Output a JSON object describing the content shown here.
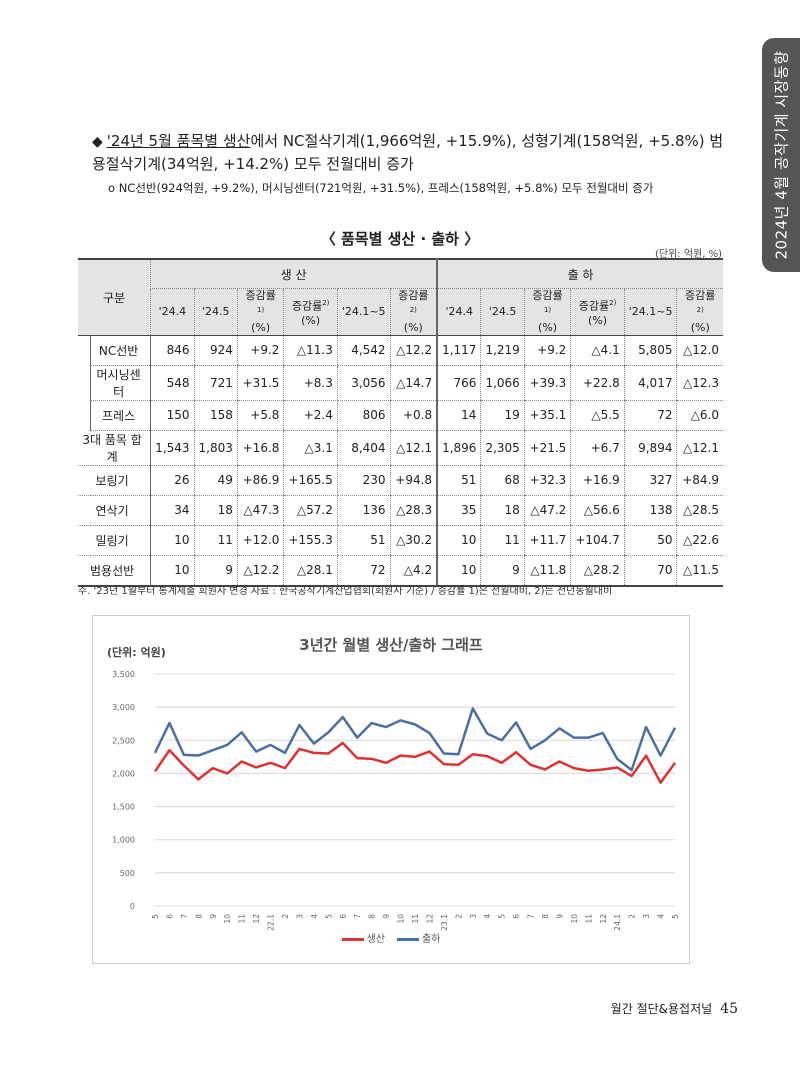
{
  "side_tab": "2024년 4월 공작기계 시장동향",
  "bullet": {
    "lead": "'24년 5월 품목별 생산",
    "text": "에서 NC절삭기계(1,966억원, +15.9%), 성형기계(158억원, +5.8%) 범용절삭기계(34억원, +14.2%) 모두 전월대비 증가",
    "sub": "o NC선반(924억원, +9.2%), 머시닝센터(721억원, +31.5%), 프레스(158억원, +5.8%) 모두 전월대비 증가"
  },
  "table": {
    "title": "〈 품목별 생산 · 출하 〉",
    "unit": "(단위: 억원, %)",
    "head_label": "구분",
    "group1": "생 산",
    "group2": "출 하",
    "cols": [
      "'24.4",
      "'24.5",
      "증감률1)\n(%)",
      "증감률2)\n(%)",
      "'24.1~5",
      "증감률2)\n(%)",
      "'24.4",
      "'24.5",
      "증감률1)\n(%)",
      "증감률2)\n(%)",
      "'24.1~5",
      "증감률2)\n(%)"
    ],
    "rows": [
      {
        "name": "NC선반",
        "indent": true,
        "cells": [
          "846",
          "924",
          "+9.2",
          "△11.3",
          "4,542",
          "△12.2",
          "1,117",
          "1,219",
          "+9.2",
          "△4.1",
          "5,805",
          "△12.0"
        ]
      },
      {
        "name": "머시닝센터",
        "indent": true,
        "cells": [
          "548",
          "721",
          "+31.5",
          "+8.3",
          "3,056",
          "△14.7",
          "766",
          "1,066",
          "+39.3",
          "+22.8",
          "4,017",
          "△12.3"
        ]
      },
      {
        "name": "프레스",
        "indent": true,
        "cells": [
          "150",
          "158",
          "+5.8",
          "+2.4",
          "806",
          "+0.8",
          "14",
          "19",
          "+35.1",
          "△5.5",
          "72",
          "△6.0"
        ]
      },
      {
        "name": "3대 품목 합계",
        "indent": false,
        "cells": [
          "1,543",
          "1,803",
          "+16.8",
          "△3.1",
          "8,404",
          "△12.1",
          "1,896",
          "2,305",
          "+21.5",
          "+6.7",
          "9,894",
          "△12.1"
        ]
      },
      {
        "name": "보링기",
        "indent": false,
        "cells": [
          "26",
          "49",
          "+86.9",
          "+165.5",
          "230",
          "+94.8",
          "51",
          "68",
          "+32.3",
          "+16.9",
          "327",
          "+84.9"
        ]
      },
      {
        "name": "연삭기",
        "indent": false,
        "cells": [
          "34",
          "18",
          "△47.3",
          "△57.2",
          "136",
          "△28.3",
          "35",
          "18",
          "△47.2",
          "△56.6",
          "138",
          "△28.5"
        ]
      },
      {
        "name": "밀링기",
        "indent": false,
        "cells": [
          "10",
          "11",
          "+12.0",
          "+155.3",
          "51",
          "△30.2",
          "10",
          "11",
          "+11.7",
          "+104.7",
          "50",
          "△22.6"
        ]
      },
      {
        "name": "범용선반",
        "indent": false,
        "cells": [
          "10",
          "9",
          "△12.2",
          "△28.1",
          "72",
          "△4.2",
          "10",
          "9",
          "△11.8",
          "△28.2",
          "70",
          "△11.5"
        ]
      }
    ],
    "note": "주. '23년 1월부터 통계제출 회원사 변경    자료 : 한국공작기계산업협회(회원사 기준) / 증감률 1)은 전월대비, 2)는 전년동월대비"
  },
  "chart_data": {
    "type": "line",
    "title": "3년간 월별 생산/출하 그래프",
    "unit_label": "(단위: 억원)",
    "ylim": [
      0,
      3500
    ],
    "yticks": [
      "0",
      "500",
      "1,000",
      "1,500",
      "2,000",
      "2,500",
      "3,000",
      "3,500"
    ],
    "x": [
      "5",
      "6",
      "7",
      "8",
      "9",
      "10",
      "11",
      "12",
      "22.1",
      "2",
      "3",
      "4",
      "5",
      "6",
      "7",
      "8",
      "9",
      "10",
      "11",
      "12",
      "23.1",
      "2",
      "3",
      "4",
      "5",
      "6",
      "7",
      "8",
      "9",
      "10",
      "11",
      "12",
      "24.1",
      "2",
      "3",
      "4",
      "5"
    ],
    "series": [
      {
        "name": "생산",
        "color": "#e03030",
        "values": [
          2030,
          2350,
          2120,
          1910,
          2080,
          2000,
          2180,
          2090,
          2160,
          2080,
          2370,
          2310,
          2300,
          2460,
          2230,
          2220,
          2160,
          2270,
          2250,
          2330,
          2140,
          2130,
          2290,
          2260,
          2160,
          2320,
          2130,
          2060,
          2180,
          2080,
          2040,
          2060,
          2090,
          1960,
          2270,
          1860,
          2160
        ]
      },
      {
        "name": "출하",
        "color": "#4a6fa5",
        "values": [
          2310,
          2760,
          2280,
          2270,
          2350,
          2430,
          2620,
          2330,
          2430,
          2310,
          2730,
          2450,
          2620,
          2850,
          2540,
          2760,
          2700,
          2800,
          2740,
          2610,
          2300,
          2290,
          2980,
          2600,
          2500,
          2770,
          2370,
          2500,
          2680,
          2540,
          2540,
          2610,
          2220,
          2050,
          2700,
          2270,
          2690
        ]
      }
    ],
    "grid": true,
    "legend": "bottom"
  },
  "footer": {
    "journal": "월간 절단&용접저널",
    "page": "45"
  }
}
